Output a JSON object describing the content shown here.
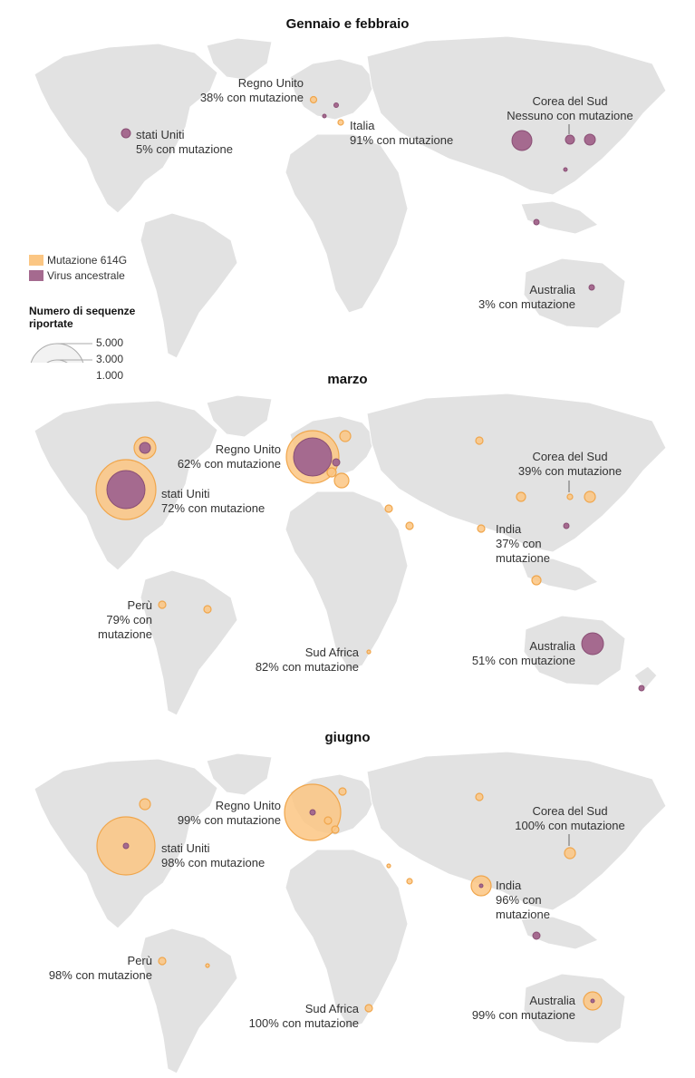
{
  "colors": {
    "land": "#e2e2e2",
    "mutation": "#fbc683",
    "mutation_stroke": "#f0a64c",
    "ancestral": "#a56a8f",
    "ancestral_stroke": "#8a4f75"
  },
  "legend": {
    "mutation_label": "Mutazione 614G",
    "ancestral_label": "Virus ancestrale",
    "size_title": "Numero di sequenze riportate",
    "size_values": [
      "5.000",
      "3.000",
      "1.000"
    ]
  },
  "panels": [
    {
      "title": "Gennaio e febbraio",
      "labels": [
        {
          "lines": [
            "Regno Unito",
            "38% con mutazione"
          ]
        },
        {
          "lines": [
            "stati Uniti",
            "5% con mutazione"
          ]
        },
        {
          "lines": [
            "Italia",
            "91% con mutazione"
          ]
        },
        {
          "lines": [
            "Corea del Sud",
            "Nessuno con mutazione"
          ]
        },
        {
          "lines": [
            "Australia",
            "3% con mutazione"
          ]
        }
      ]
    },
    {
      "title": "marzo",
      "labels": [
        {
          "lines": [
            "Regno Unito",
            "62% con mutazione"
          ]
        },
        {
          "lines": [
            "stati Uniti",
            "72% con mutazione"
          ]
        },
        {
          "lines": [
            "Corea del Sud",
            "39% con mutazione"
          ]
        },
        {
          "lines": [
            "India",
            "37% con",
            "mutazione"
          ]
        },
        {
          "lines": [
            "Perù",
            "79% con",
            "mutazione"
          ]
        },
        {
          "lines": [
            "Sud Africa",
            "82% con mutazione"
          ]
        },
        {
          "lines": [
            "Australia",
            "51% con mutazione"
          ]
        }
      ]
    },
    {
      "title": "giugno",
      "labels": [
        {
          "lines": [
            "Regno Unito",
            "99% con mutazione"
          ]
        },
        {
          "lines": [
            "stati Uniti",
            "98% con mutazione"
          ]
        },
        {
          "lines": [
            "Corea del Sud",
            "100% con mutazione"
          ]
        },
        {
          "lines": [
            "India",
            "96% con",
            "mutazione"
          ]
        },
        {
          "lines": [
            "Perù",
            "98% con mutazione"
          ]
        },
        {
          "lines": [
            "Sud Africa",
            "100% con mutazione"
          ]
        },
        {
          "lines": [
            "Australia",
            "99% con mutazione"
          ]
        }
      ]
    }
  ]
}
